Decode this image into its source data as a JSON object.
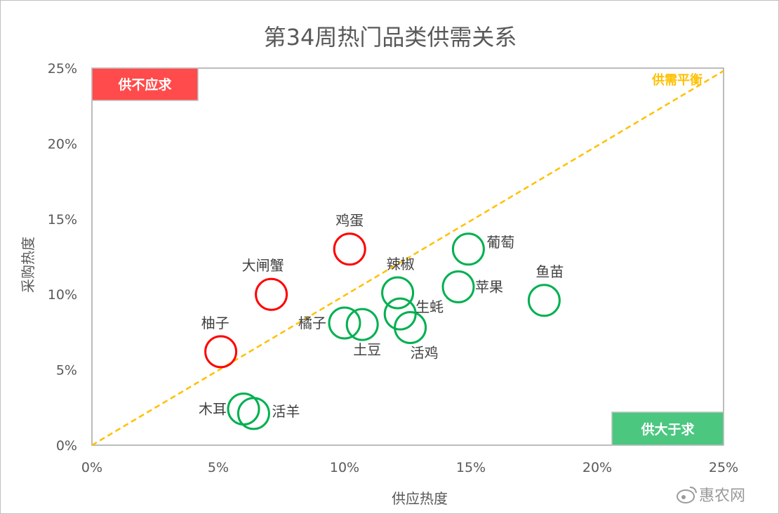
{
  "chart_data": {
    "type": "scatter",
    "title": "第34周热门品类供需关系",
    "xlabel": "供应热度",
    "ylabel": "采购热度",
    "xlim": [
      0,
      0.25
    ],
    "ylim": [
      0,
      0.25
    ],
    "xticks": [
      "0%",
      "5%",
      "10%",
      "15%",
      "20%",
      "25%"
    ],
    "yticks": [
      "0%",
      "5%",
      "10%",
      "15%",
      "20%",
      "25%"
    ],
    "grid": false,
    "diagonal_label": "供需平衡",
    "quadrants": {
      "top_left": "供不应求",
      "bottom_right": "供大于求"
    },
    "colors": {
      "demand_exceeds_supply": "#ff0000",
      "supply_exceeds_demand": "#00b050",
      "diagonal": "#ffc000",
      "top_left_box": "#ff4b4b",
      "bottom_right_box": "#4bc780"
    },
    "points": [
      {
        "label": "鸡蛋",
        "x": 0.102,
        "y": 0.13,
        "group": "demand_exceeds_supply"
      },
      {
        "label": "大闸蟹",
        "x": 0.071,
        "y": 0.1,
        "group": "demand_exceeds_supply"
      },
      {
        "label": "柚子",
        "x": 0.051,
        "y": 0.062,
        "group": "demand_exceeds_supply"
      },
      {
        "label": "葡萄",
        "x": 0.149,
        "y": 0.13,
        "group": "supply_exceeds_demand"
      },
      {
        "label": "苹果",
        "x": 0.145,
        "y": 0.105,
        "group": "supply_exceeds_demand"
      },
      {
        "label": "鱼苗",
        "x": 0.179,
        "y": 0.096,
        "group": "supply_exceeds_demand"
      },
      {
        "label": "辣椒",
        "x": 0.121,
        "y": 0.101,
        "group": "supply_exceeds_demand"
      },
      {
        "label": "生蚝",
        "x": 0.122,
        "y": 0.087,
        "group": "supply_exceeds_demand"
      },
      {
        "label": "活鸡",
        "x": 0.126,
        "y": 0.078,
        "group": "supply_exceeds_demand"
      },
      {
        "label": "橘子",
        "x": 0.1,
        "y": 0.081,
        "group": "supply_exceeds_demand"
      },
      {
        "label": "土豆",
        "x": 0.107,
        "y": 0.08,
        "group": "supply_exceeds_demand"
      },
      {
        "label": "木耳",
        "x": 0.06,
        "y": 0.024,
        "group": "supply_exceeds_demand"
      },
      {
        "label": "活羊",
        "x": 0.064,
        "y": 0.021,
        "group": "supply_exceeds_demand"
      }
    ]
  },
  "watermark": {
    "text": "惠农网",
    "icon": "weibo-icon"
  }
}
